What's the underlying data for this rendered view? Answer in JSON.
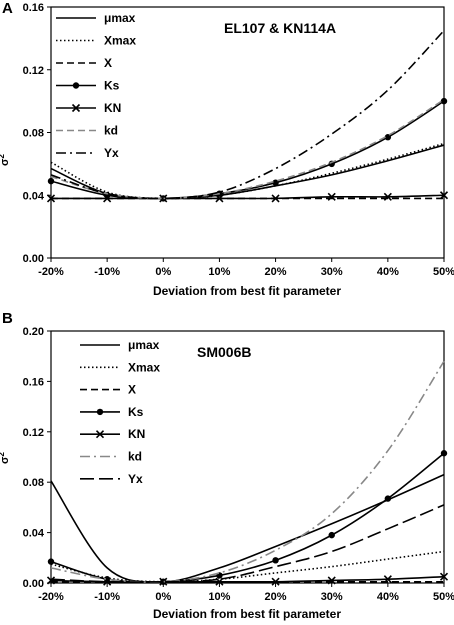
{
  "chart_data": [
    {
      "type": "line",
      "panel": "A",
      "title": "EL107 & KN114A",
      "xlabel": "Deviation from best fit parameter",
      "ylabel": "σ2",
      "categories": [
        "-20%",
        "-10%",
        "0%",
        "10%",
        "20%",
        "30%",
        "40%",
        "50%"
      ],
      "x": [
        -20,
        -10,
        0,
        10,
        20,
        30,
        40,
        50
      ],
      "yticks": [
        "0.00",
        "0.04",
        "0.08",
        "0.12",
        "0.16"
      ],
      "ylim": [
        0,
        0.16
      ],
      "grid": false,
      "legend_position": "top-left",
      "series": [
        {
          "name": "μmax",
          "values": [
            0.057,
            0.041,
            0.038,
            0.04,
            0.046,
            0.053,
            0.062,
            0.072
          ],
          "color": "#000000",
          "dash": "solid",
          "marker": "none"
        },
        {
          "name": "Xmax",
          "values": [
            0.061,
            0.042,
            0.038,
            0.04,
            0.046,
            0.054,
            0.063,
            0.073
          ],
          "color": "#000000",
          "dash": "dotted",
          "marker": "none"
        },
        {
          "name": "X",
          "values": [
            0.038,
            0.038,
            0.038,
            0.038,
            0.038,
            0.038,
            0.038,
            0.038
          ],
          "color": "#000000",
          "dash": "dashed",
          "marker": "none"
        },
        {
          "name": "Ks",
          "values": [
            0.049,
            0.04,
            0.038,
            0.041,
            0.048,
            0.06,
            0.077,
            0.1
          ],
          "color": "#000000",
          "dash": "solid",
          "marker": "circle"
        },
        {
          "name": "KN",
          "values": [
            0.038,
            0.038,
            0.038,
            0.038,
            0.038,
            0.039,
            0.039,
            0.04
          ],
          "color": "#000000",
          "dash": "solid",
          "marker": "x"
        },
        {
          "name": "kd",
          "values": [
            0.052,
            0.041,
            0.038,
            0.041,
            0.049,
            0.061,
            0.078,
            0.101
          ],
          "color": "#888888",
          "dash": "dashed",
          "marker": "none"
        },
        {
          "name": "Yx",
          "values": [
            0.053,
            0.041,
            0.038,
            0.042,
            0.057,
            0.079,
            0.107,
            0.145
          ],
          "color": "#000000",
          "dash": "dashdot",
          "marker": "none"
        }
      ]
    },
    {
      "type": "line",
      "panel": "B",
      "title": "SM006B",
      "xlabel": "Deviation from best fit parameter",
      "ylabel": "σ2",
      "categories": [
        "-20%",
        "-10%",
        "0%",
        "10%",
        "20%",
        "30%",
        "40%",
        "50%"
      ],
      "x": [
        -20,
        -10,
        0,
        10,
        20,
        30,
        40,
        50
      ],
      "yticks": [
        "0.00",
        "0.04",
        "0.08",
        "0.12",
        "0.16",
        "0.20"
      ],
      "ylim": [
        0,
        0.2
      ],
      "grid": false,
      "legend_position": "top-left",
      "series": [
        {
          "name": "μmax",
          "values": [
            0.081,
            0.012,
            0.001,
            0.012,
            0.029,
            0.047,
            0.066,
            0.086
          ],
          "color": "#000000",
          "dash": "solid",
          "marker": "none"
        },
        {
          "name": "Xmax",
          "values": [
            0.015,
            0.004,
            0.001,
            0.003,
            0.008,
            0.013,
            0.019,
            0.025
          ],
          "color": "#000000",
          "dash": "dotted",
          "marker": "none"
        },
        {
          "name": "X",
          "values": [
            0.001,
            0.001,
            0.001,
            0.001,
            0.001,
            0.001,
            0.001,
            0.001
          ],
          "color": "#000000",
          "dash": "dashed",
          "marker": "none"
        },
        {
          "name": "Ks",
          "values": [
            0.017,
            0.003,
            0.001,
            0.006,
            0.018,
            0.038,
            0.067,
            0.103
          ],
          "color": "#000000",
          "dash": "solid",
          "marker": "circle"
        },
        {
          "name": "KN",
          "values": [
            0.002,
            0.001,
            0.001,
            0.001,
            0.001,
            0.002,
            0.003,
            0.005
          ],
          "color": "#000000",
          "dash": "solid",
          "marker": "x"
        },
        {
          "name": "kd",
          "values": [
            0.012,
            0.003,
            0.001,
            0.008,
            0.026,
            0.055,
            0.105,
            0.176
          ],
          "color": "#888888",
          "dash": "dashdot",
          "marker": "none"
        },
        {
          "name": "Yx",
          "values": [
            0.003,
            0.001,
            0.001,
            0.003,
            0.013,
            0.025,
            0.043,
            0.062
          ],
          "color": "#000000",
          "dash": "longdash",
          "marker": "none"
        }
      ]
    }
  ]
}
